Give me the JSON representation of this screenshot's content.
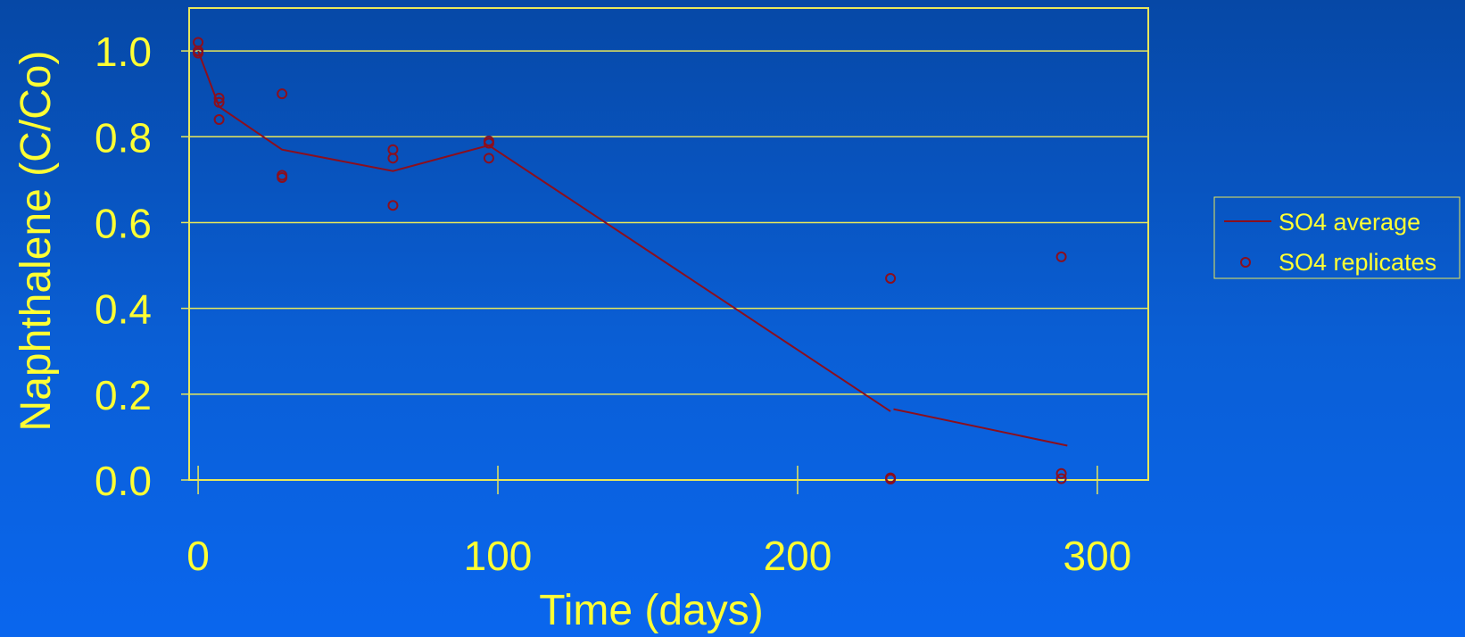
{
  "chart_data": {
    "type": "line",
    "title": "",
    "xlabel": "Time (days)",
    "ylabel": "Naphthalene (C/Co)",
    "xlim": [
      -3,
      317
    ],
    "ylim": [
      0.0,
      1.1
    ],
    "x_ticks": [
      0,
      100,
      200,
      300
    ],
    "x_tick_labels": [
      "0",
      "100",
      "200",
      "300"
    ],
    "y_ticks": [
      0.0,
      0.2,
      0.4,
      0.6,
      0.8,
      1.0
    ],
    "y_tick_labels": [
      "0.0",
      "0.2",
      "0.4",
      "0.6",
      "0.8",
      "1.0"
    ],
    "grid": "horizontal",
    "legend_position": "right",
    "colors": {
      "series": "#8b0f1e",
      "text": "#ffff33",
      "frame": "#e8e85a"
    },
    "series": [
      {
        "name": "SO4 average",
        "kind": "line",
        "segments": [
          [
            [
              0,
              1.0
            ],
            [
              7,
              0.87
            ],
            [
              28,
              0.77
            ],
            [
              65,
              0.72
            ],
            [
              97,
              0.78
            ],
            [
              231,
              0.16
            ]
          ],
          [
            [
              232,
              0.165
            ],
            [
              290,
              0.08
            ]
          ]
        ]
      },
      {
        "name": "SO4 replicates",
        "kind": "scatter",
        "points": [
          [
            0,
            1.02
          ],
          [
            0,
            1.0
          ],
          [
            0,
            0.995
          ],
          [
            7,
            0.89
          ],
          [
            7,
            0.88
          ],
          [
            7,
            0.84
          ],
          [
            28,
            0.9
          ],
          [
            28,
            0.71
          ],
          [
            28,
            0.705
          ],
          [
            65,
            0.77
          ],
          [
            65,
            0.75
          ],
          [
            65,
            0.64
          ],
          [
            97,
            0.79
          ],
          [
            97,
            0.785
          ],
          [
            97,
            0.75
          ],
          [
            231,
            0.47
          ],
          [
            231,
            0.005
          ],
          [
            231,
            0.002
          ],
          [
            288,
            0.52
          ],
          [
            288,
            0.015
          ],
          [
            288,
            0.003
          ]
        ]
      }
    ]
  }
}
